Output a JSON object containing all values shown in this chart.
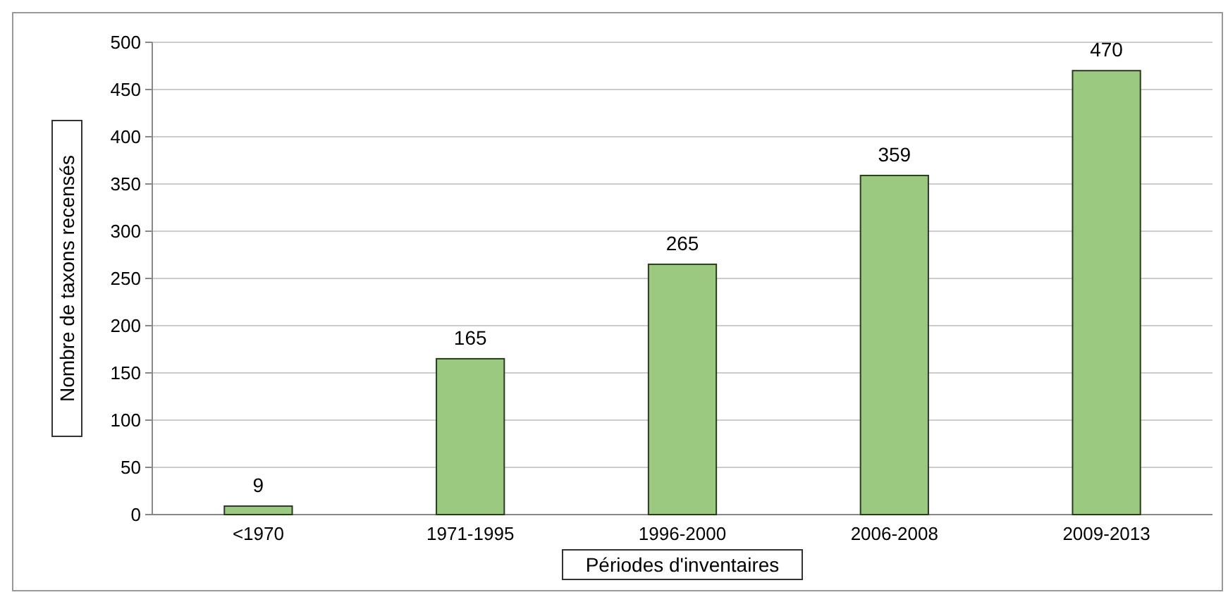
{
  "chart_data": {
    "type": "bar",
    "xlabel": "Périodes d'inventaires",
    "ylabel": "Nombre de taxons recensés",
    "categories": [
      "<1970",
      "1971-1995",
      "1996-2000",
      "2006-2008",
      "2009-2013"
    ],
    "values": [
      9,
      165,
      265,
      359,
      470
    ],
    "color": "#9bc97f",
    "ylim": [
      0,
      500
    ],
    "yticks": [
      0,
      50,
      100,
      150,
      200,
      250,
      300,
      350,
      400,
      450,
      500
    ],
    "grid": "y",
    "data_labels": true
  }
}
